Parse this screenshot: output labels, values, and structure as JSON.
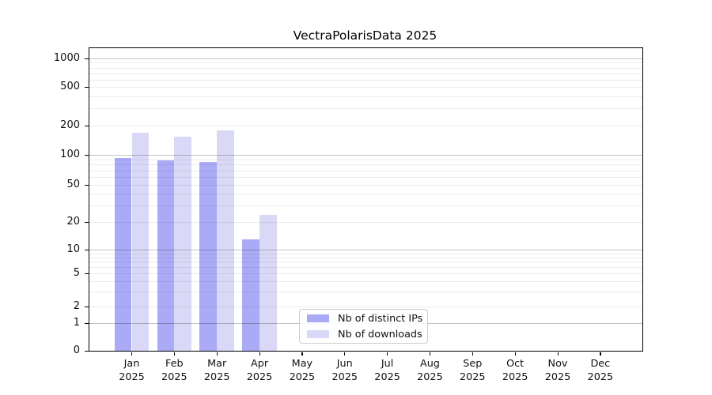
{
  "figure": {
    "background": "#ffffff"
  },
  "chart_data": {
    "type": "bar",
    "title": "VectraPolarisData 2025",
    "yscale": "symlog",
    "ylabel": "",
    "xlabel": "",
    "y_ticks": [
      0,
      1,
      2,
      5,
      10,
      20,
      50,
      100,
      200,
      500,
      1000
    ],
    "ylim": [
      0,
      1290
    ],
    "grid": true,
    "x_months": [
      "Jan",
      "Feb",
      "Mar",
      "Apr",
      "May",
      "Jun",
      "Jul",
      "Aug",
      "Sep",
      "Oct",
      "Nov",
      "Dec"
    ],
    "x_year": "2025",
    "categories": [
      "Jan 2025",
      "Feb 2025",
      "Mar 2025",
      "Apr 2025",
      "May 2025",
      "Jun 2025",
      "Jul 2025",
      "Aug 2025",
      "Sep 2025",
      "Oct 2025",
      "Nov 2025",
      "Dec 2025"
    ],
    "series": [
      {
        "name": "Nb of distinct IPs",
        "color": "#aaaaf7",
        "values": [
          93,
          88,
          85,
          13,
          0,
          0,
          0,
          0,
          0,
          0,
          0,
          0
        ]
      },
      {
        "name": "Nb of downloads",
        "color": "#d9d9f7",
        "values": [
          170,
          155,
          180,
          24,
          0,
          0,
          0,
          0,
          0,
          0,
          0,
          0
        ]
      }
    ],
    "legend_position": "lower center"
  },
  "legend": {
    "items": [
      {
        "label": "Nb of distinct IPs",
        "color": "#aaaaf7"
      },
      {
        "label": "Nb of downloads",
        "color": "#d9d9f7"
      }
    ]
  },
  "axes": {
    "spine_color": "#000000",
    "grid_major_color": "#c4c4c4",
    "grid_minor_color": "#ececec",
    "text_color": "#111111"
  }
}
